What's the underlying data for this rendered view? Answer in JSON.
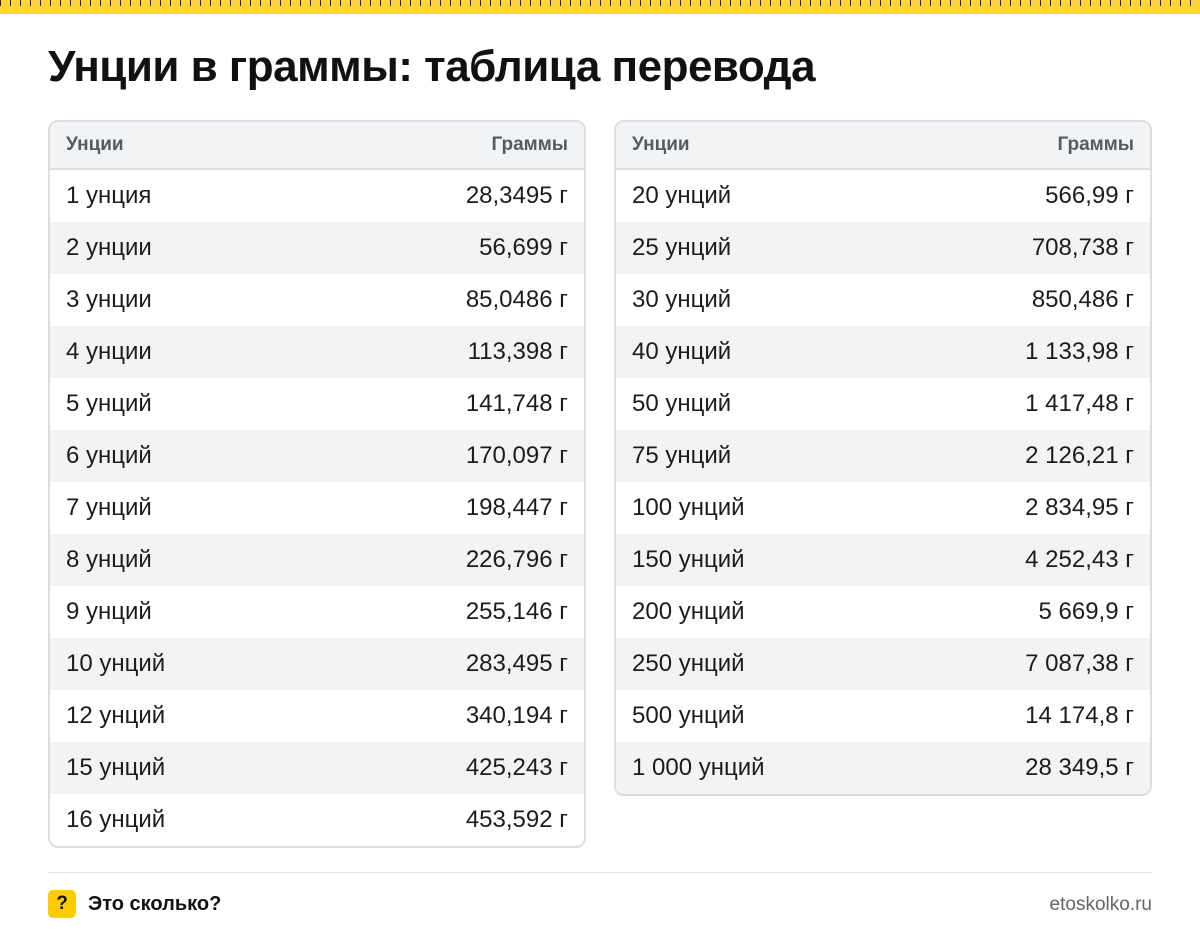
{
  "title": "Унции в граммы: таблица перевода",
  "colors": {
    "accent": "#ffd43b",
    "stripe": "#f2f3f5",
    "border": "#dcdde0"
  },
  "left_table": {
    "headers": [
      "Унции",
      "Граммы"
    ],
    "rows": [
      [
        "1 унция",
        "28,3495 г"
      ],
      [
        "2 унции",
        "56,699 г"
      ],
      [
        "3 унции",
        "85,0486 г"
      ],
      [
        "4 унции",
        "113,398 г"
      ],
      [
        "5 унций",
        "141,748 г"
      ],
      [
        "6 унций",
        "170,097 г"
      ],
      [
        "7 унций",
        "198,447 г"
      ],
      [
        "8 унций",
        "226,796 г"
      ],
      [
        "9 унций",
        "255,146 г"
      ],
      [
        "10 унций",
        "283,495 г"
      ],
      [
        "12 унций",
        "340,194 г"
      ],
      [
        "15 унций",
        "425,243 г"
      ],
      [
        "16 унций",
        "453,592 г"
      ]
    ]
  },
  "right_table": {
    "headers": [
      "Унции",
      "Граммы"
    ],
    "rows": [
      [
        "20 унций",
        "566,99 г"
      ],
      [
        "25 унций",
        "708,738 г"
      ],
      [
        "30 унций",
        "850,486 г"
      ],
      [
        "40 унций",
        "1 133,98 г"
      ],
      [
        "50 унций",
        "1 417,48 г"
      ],
      [
        "75 унций",
        "2 126,21 г"
      ],
      [
        "100 унций",
        "2 834,95 г"
      ],
      [
        "150 унций",
        "4 252,43 г"
      ],
      [
        "200 унций",
        "5 669,9 г"
      ],
      [
        "250 унций",
        "7 087,38 г"
      ],
      [
        "500 унций",
        "14 174,8 г"
      ],
      [
        "1 000 унций",
        "28 349,5 г"
      ]
    ]
  },
  "footer": {
    "logo_glyph": "?",
    "brand": "Это сколько?",
    "site": "etoskolko.ru"
  }
}
